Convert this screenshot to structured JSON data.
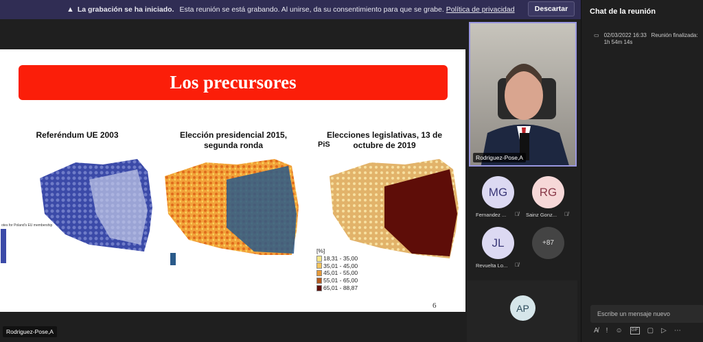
{
  "banner": {
    "title": "La grabación se ha iniciado.",
    "message": "Esta reunión se está grabando. Al unirse, da su consentimiento para que se grabe.",
    "privacy_link": "Política de privacidad",
    "dismiss": "Descartar"
  },
  "slide": {
    "title": "Los precursores",
    "maps": [
      {
        "title": "Referéndum UE 2003",
        "legend_title": "otes for Poland's EU membership"
      },
      {
        "title": "Elección presidencial 2015, segunda ronda"
      },
      {
        "title": "Elecciones legislativas, 13 de octubre de 2019",
        "party": "PiS",
        "legend_unit": "[%]",
        "legend": [
          {
            "label": "18,31 - 35,00",
            "color": "#f7e88a"
          },
          {
            "label": "35,01 - 45,00",
            "color": "#f3c45c"
          },
          {
            "label": "45,01 - 55,00",
            "color": "#e59a3a"
          },
          {
            "label": "55,01 - 65,00",
            "color": "#b45a1e"
          },
          {
            "label": "65,01 - 88,87",
            "color": "#5e0d08"
          }
        ]
      }
    ],
    "page": "6"
  },
  "video": {
    "name": "Rodriguez-Pose,A"
  },
  "participants": [
    {
      "initials": "MG",
      "name": "Fernandez ...",
      "bg": "#dcd9f2",
      "fg": "#3b3878"
    },
    {
      "initials": "RG",
      "name": "Sainz Gonz...",
      "bg": "#f6d8d8",
      "fg": "#8a3a4a"
    },
    {
      "initials": "JL",
      "name": "Revuelta Lo...",
      "bg": "#dcd9f2",
      "fg": "#3b3878"
    },
    {
      "initials": "+87"
    }
  ],
  "self": {
    "initials": "AP"
  },
  "presenter_label": "Rodriguez-Pose,A",
  "chat": {
    "title": "Chat de la reunión",
    "event_date": "02/03/2022 16:33",
    "event_text": "Reunión finalizada: 1h 54m 14s",
    "placeholder": "Escribe un mensaje nuevo"
  }
}
